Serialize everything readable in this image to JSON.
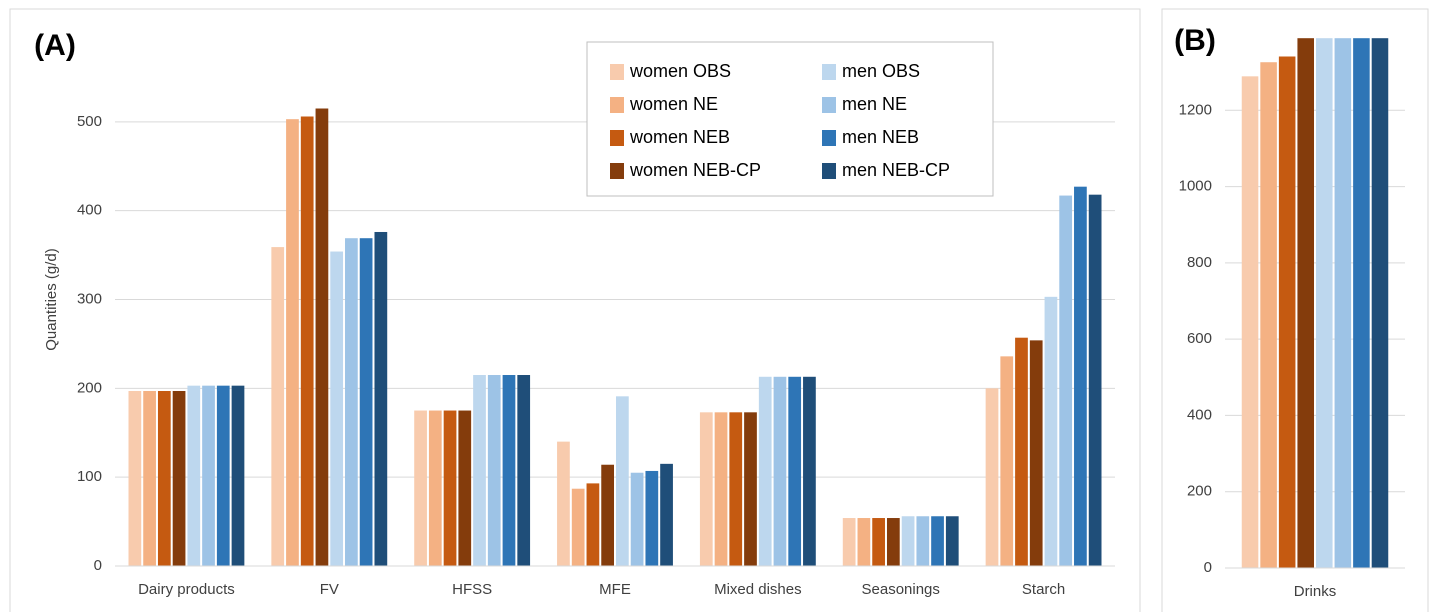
{
  "chart_data": [
    {
      "type": "bar",
      "label": "(A)",
      "y_label": "Quantities (g/d)",
      "categories": [
        "Dairy products",
        "FV",
        "HFSS",
        "MFE",
        "Mixed dishes",
        "Seasonings",
        "Starch"
      ],
      "series": [
        {
          "name": "women OBS",
          "color": "#f8cbad",
          "values": [
            197,
            359,
            175,
            140,
            173,
            54,
            200
          ]
        },
        {
          "name": "women NE",
          "color": "#f4b183",
          "values": [
            197,
            503,
            175,
            87,
            173,
            54,
            236
          ]
        },
        {
          "name": "women NEB",
          "color": "#c55a11",
          "values": [
            197,
            506,
            175,
            93,
            173,
            54,
            257
          ]
        },
        {
          "name": "women NEB-CP",
          "color": "#843c0c",
          "values": [
            197,
            515,
            175,
            114,
            173,
            54,
            254
          ]
        },
        {
          "name": "men OBS",
          "color": "#bdd7ee",
          "values": [
            203,
            354,
            215,
            191,
            213,
            56,
            303
          ]
        },
        {
          "name": "men NE",
          "color": "#9dc3e6",
          "values": [
            203,
            369,
            215,
            105,
            213,
            56,
            417
          ]
        },
        {
          "name": "men NEB",
          "color": "#2e75b6",
          "values": [
            203,
            369,
            215,
            107,
            213,
            56,
            427
          ]
        },
        {
          "name": "men NEB-CP",
          "color": "#1f4e79",
          "values": [
            203,
            376,
            215,
            115,
            213,
            56,
            418
          ]
        }
      ],
      "ylim": [
        0,
        600
      ],
      "yticks": [
        0,
        100,
        200,
        300,
        400,
        500
      ],
      "grid": true,
      "legend": "top-right"
    },
    {
      "type": "bar",
      "label": "(B)",
      "categories": [
        "Drinks"
      ],
      "series": [
        {
          "color": "#f8cbad",
          "values": [
            1289
          ]
        },
        {
          "color": "#f4b183",
          "values": [
            1326
          ]
        },
        {
          "color": "#c55a11",
          "values": [
            1341
          ]
        },
        {
          "color": "#843c0c",
          "values": [
            1389
          ]
        },
        {
          "color": "#bdd7ee",
          "values": [
            1389
          ]
        },
        {
          "color": "#9dc3e6",
          "values": [
            1389
          ]
        },
        {
          "color": "#2e75b6",
          "values": [
            1389
          ]
        },
        {
          "color": "#1f4e79",
          "values": [
            1389
          ]
        }
      ],
      "ylim": [
        0,
        1400
      ],
      "yticks": [
        0,
        200,
        400,
        600,
        800,
        1000,
        1200
      ],
      "grid": true
    }
  ]
}
